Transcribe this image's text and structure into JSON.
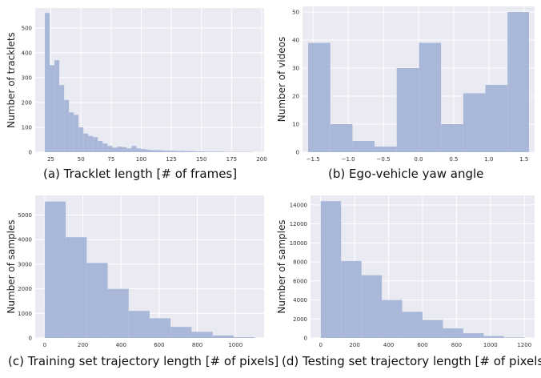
{
  "colors": {
    "plot_bg": "#EAEAF2",
    "grid": "#FFFFFF",
    "bar": "#A9B8D8"
  },
  "chart_data": [
    {
      "type": "bar",
      "caption": "(a) Tracklet length [# of frames]",
      "xlabel": "",
      "ylabel": "Number of tracklets",
      "xlim": [
        12,
        202
      ],
      "ylim": [
        0,
        580
      ],
      "xticks": [
        25,
        50,
        75,
        100,
        125,
        150,
        175,
        200
      ],
      "yticks": [
        0,
        100,
        200,
        300,
        400,
        500
      ],
      "bins": [
        [
          20,
          24,
          560
        ],
        [
          24,
          28,
          350
        ],
        [
          28,
          32,
          370
        ],
        [
          32,
          36,
          270
        ],
        [
          36,
          40,
          210
        ],
        [
          40,
          44,
          160
        ],
        [
          44,
          48,
          150
        ],
        [
          48,
          52,
          100
        ],
        [
          52,
          56,
          75
        ],
        [
          56,
          60,
          65
        ],
        [
          60,
          64,
          60
        ],
        [
          64,
          68,
          45
        ],
        [
          68,
          72,
          35
        ],
        [
          72,
          76,
          25
        ],
        [
          76,
          80,
          18
        ],
        [
          80,
          84,
          22
        ],
        [
          84,
          88,
          20
        ],
        [
          88,
          92,
          15
        ],
        [
          92,
          96,
          25
        ],
        [
          96,
          100,
          15
        ],
        [
          100,
          104,
          12
        ],
        [
          104,
          108,
          10
        ],
        [
          108,
          112,
          8
        ],
        [
          112,
          116,
          8
        ],
        [
          116,
          120,
          7
        ],
        [
          120,
          124,
          6
        ],
        [
          124,
          128,
          6
        ],
        [
          128,
          132,
          5
        ],
        [
          132,
          136,
          5
        ],
        [
          136,
          140,
          4
        ],
        [
          140,
          144,
          4
        ],
        [
          144,
          148,
          3
        ],
        [
          148,
          152,
          3
        ],
        [
          152,
          156,
          2
        ],
        [
          156,
          160,
          2
        ],
        [
          160,
          164,
          2
        ],
        [
          164,
          168,
          2
        ],
        [
          168,
          172,
          1
        ],
        [
          172,
          176,
          1
        ],
        [
          176,
          180,
          1
        ],
        [
          180,
          184,
          1
        ],
        [
          184,
          188,
          1
        ],
        [
          188,
          192,
          1
        ]
      ]
    },
    {
      "type": "bar",
      "caption": "(b) Ego-vehicle yaw angle",
      "xlabel": "",
      "ylabel": "Number of videos",
      "xlim": [
        -1.65,
        1.65
      ],
      "ylim": [
        0,
        52
      ],
      "xticks": [
        -1.5,
        -1.0,
        -0.5,
        0.0,
        0.5,
        1.0,
        1.5
      ],
      "xtick_labels": [
        "−1.5",
        "−1.0",
        "−0.5",
        "0.0",
        "0.5",
        "1.0",
        "1.5"
      ],
      "yticks": [
        0,
        10,
        20,
        30,
        40,
        50
      ],
      "bins": [
        [
          -1.57,
          -1.255,
          39
        ],
        [
          -1.255,
          -0.94,
          10
        ],
        [
          -0.94,
          -0.625,
          4
        ],
        [
          -0.625,
          -0.31,
          2
        ],
        [
          -0.31,
          0.005,
          30
        ],
        [
          0.005,
          0.32,
          39
        ],
        [
          0.32,
          0.635,
          10
        ],
        [
          0.635,
          0.95,
          21
        ],
        [
          0.95,
          1.265,
          24
        ],
        [
          1.265,
          1.57,
          50
        ]
      ]
    },
    {
      "type": "bar",
      "caption": "(c) Training set trajectory length [# of pixels]",
      "xlabel": "",
      "ylabel": "Number of samples",
      "xlim": [
        -50,
        1150
      ],
      "ylim": [
        0,
        5800
      ],
      "xticks": [
        0,
        200,
        400,
        600,
        800,
        1000
      ],
      "yticks": [
        0,
        1000,
        2000,
        3000,
        4000,
        5000
      ],
      "bins": [
        [
          0,
          110,
          5550
        ],
        [
          110,
          220,
          4100
        ],
        [
          220,
          330,
          3050
        ],
        [
          330,
          440,
          2000
        ],
        [
          440,
          550,
          1100
        ],
        [
          550,
          660,
          800
        ],
        [
          660,
          770,
          450
        ],
        [
          770,
          880,
          250
        ],
        [
          880,
          990,
          100
        ],
        [
          990,
          1100,
          30
        ]
      ]
    },
    {
      "type": "bar",
      "caption": "(d) Testing set trajectory length [# of pixels]",
      "xlabel": "",
      "ylabel": "Number of samples",
      "xlim": [
        -60,
        1260
      ],
      "ylim": [
        0,
        15000
      ],
      "xticks": [
        0,
        200,
        400,
        600,
        800,
        1000,
        1200
      ],
      "yticks": [
        0,
        2000,
        4000,
        6000,
        8000,
        10000,
        12000,
        14000
      ],
      "bins": [
        [
          0,
          120,
          14400
        ],
        [
          120,
          240,
          8100
        ],
        [
          240,
          360,
          6600
        ],
        [
          360,
          480,
          4000
        ],
        [
          480,
          600,
          2750
        ],
        [
          600,
          720,
          1900
        ],
        [
          720,
          840,
          1000
        ],
        [
          840,
          960,
          500
        ],
        [
          960,
          1080,
          200
        ],
        [
          1080,
          1200,
          50
        ]
      ]
    }
  ]
}
